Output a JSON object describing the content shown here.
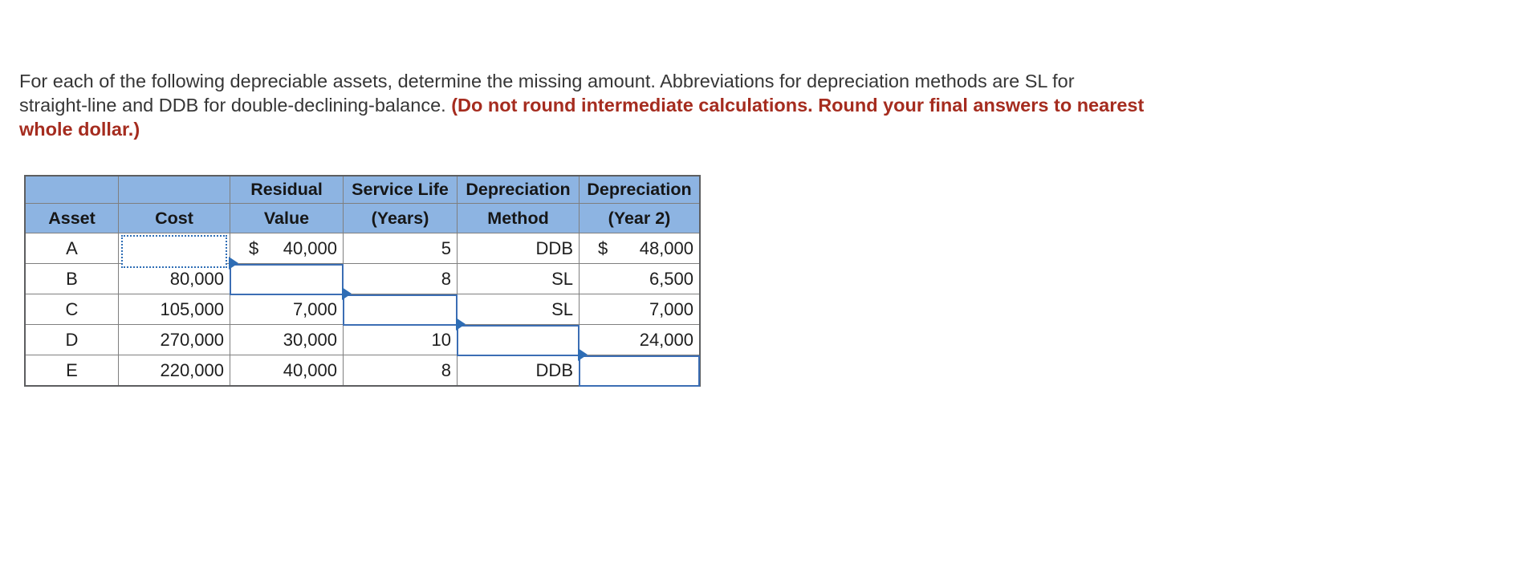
{
  "instructions": {
    "line1": "For each of the following depreciable assets, determine the missing amount. Abbreviations for depreciation methods are SL for",
    "line2_normal": "straight-line and DDB for double-declining-balance. ",
    "line2_red": "(Do not round intermediate calculations. Round your final answers to nearest",
    "line3_red": "whole dollar.)"
  },
  "table": {
    "header1": [
      "",
      "",
      "Residual",
      "Service Life",
      "Depreciation",
      "Depreciation"
    ],
    "header2": [
      "Asset",
      "Cost",
      "Value",
      "(Years)",
      "Method",
      "(Year 2)"
    ],
    "rows": [
      {
        "asset": "A",
        "cost_input": "",
        "residual_dollar": "$",
        "residual": "40,000",
        "life": "5",
        "method": "DDB",
        "year2_dollar": "$",
        "year2": "48,000"
      },
      {
        "asset": "B",
        "cost": "80,000",
        "residual_input": "",
        "life": "8",
        "method": "SL",
        "year2": "6,500"
      },
      {
        "asset": "C",
        "cost": "105,000",
        "residual": "7,000",
        "life_input": "",
        "method": "SL",
        "year2": "7,000"
      },
      {
        "asset": "D",
        "cost": "270,000",
        "residual": "30,000",
        "life": "10",
        "method_input": "",
        "year2": "24,000"
      },
      {
        "asset": "E",
        "cost": "220,000",
        "residual": "40,000",
        "life": "8",
        "method": "DDB",
        "year2_input": ""
      }
    ]
  },
  "icons": {
    "input_flag": "blue triangle marker at top-left of answer box"
  },
  "colors": {
    "header_bg": "#8db4e2",
    "grid_border": "#7f7f7f",
    "outer_border": "#5d5e60",
    "input_border": "#3c6eb4",
    "red_text": "#a52c1f",
    "body_text": "#363636"
  }
}
